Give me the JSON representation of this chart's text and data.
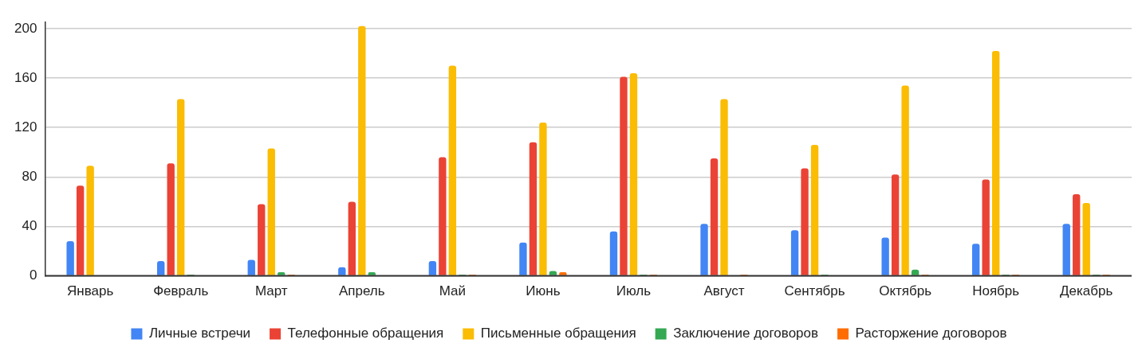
{
  "chart_data": {
    "type": "bar",
    "categories": [
      "Январь",
      "Февраль",
      "Март",
      "Апрель",
      "Май",
      "Июнь",
      "Июль",
      "Август",
      "Сентябрь",
      "Октябрь",
      "Ноябрь",
      "Декабрь"
    ],
    "series": [
      {
        "name": "Личные встречи",
        "color": "#4285f4",
        "values": [
          28,
          12,
          13,
          7,
          12,
          27,
          36,
          42,
          37,
          31,
          26,
          42
        ]
      },
      {
        "name": "Телефонные обращения",
        "color": "#ea4335",
        "values": [
          73,
          91,
          58,
          60,
          96,
          108,
          161,
          95,
          87,
          82,
          78,
          66
        ]
      },
      {
        "name": "Письменные обращения",
        "color": "#fbbc04",
        "values": [
          89,
          143,
          103,
          202,
          170,
          124,
          164,
          143,
          106,
          154,
          182,
          59
        ]
      },
      {
        "name": "Заключение договоров",
        "color": "#34a853",
        "values": [
          0,
          1,
          3,
          3,
          1,
          4,
          1,
          0,
          1,
          5,
          1,
          1
        ]
      },
      {
        "name": "Расторжение договоров",
        "color": "#ff6d01",
        "values": [
          0,
          0,
          1,
          0,
          1,
          3,
          1,
          1,
          0,
          1,
          1,
          1
        ]
      }
    ],
    "ylim": [
      0,
      205
    ],
    "yticks": [
      0,
      40,
      80,
      120,
      160,
      200
    ],
    "grid": "y",
    "legend": "bottom"
  }
}
